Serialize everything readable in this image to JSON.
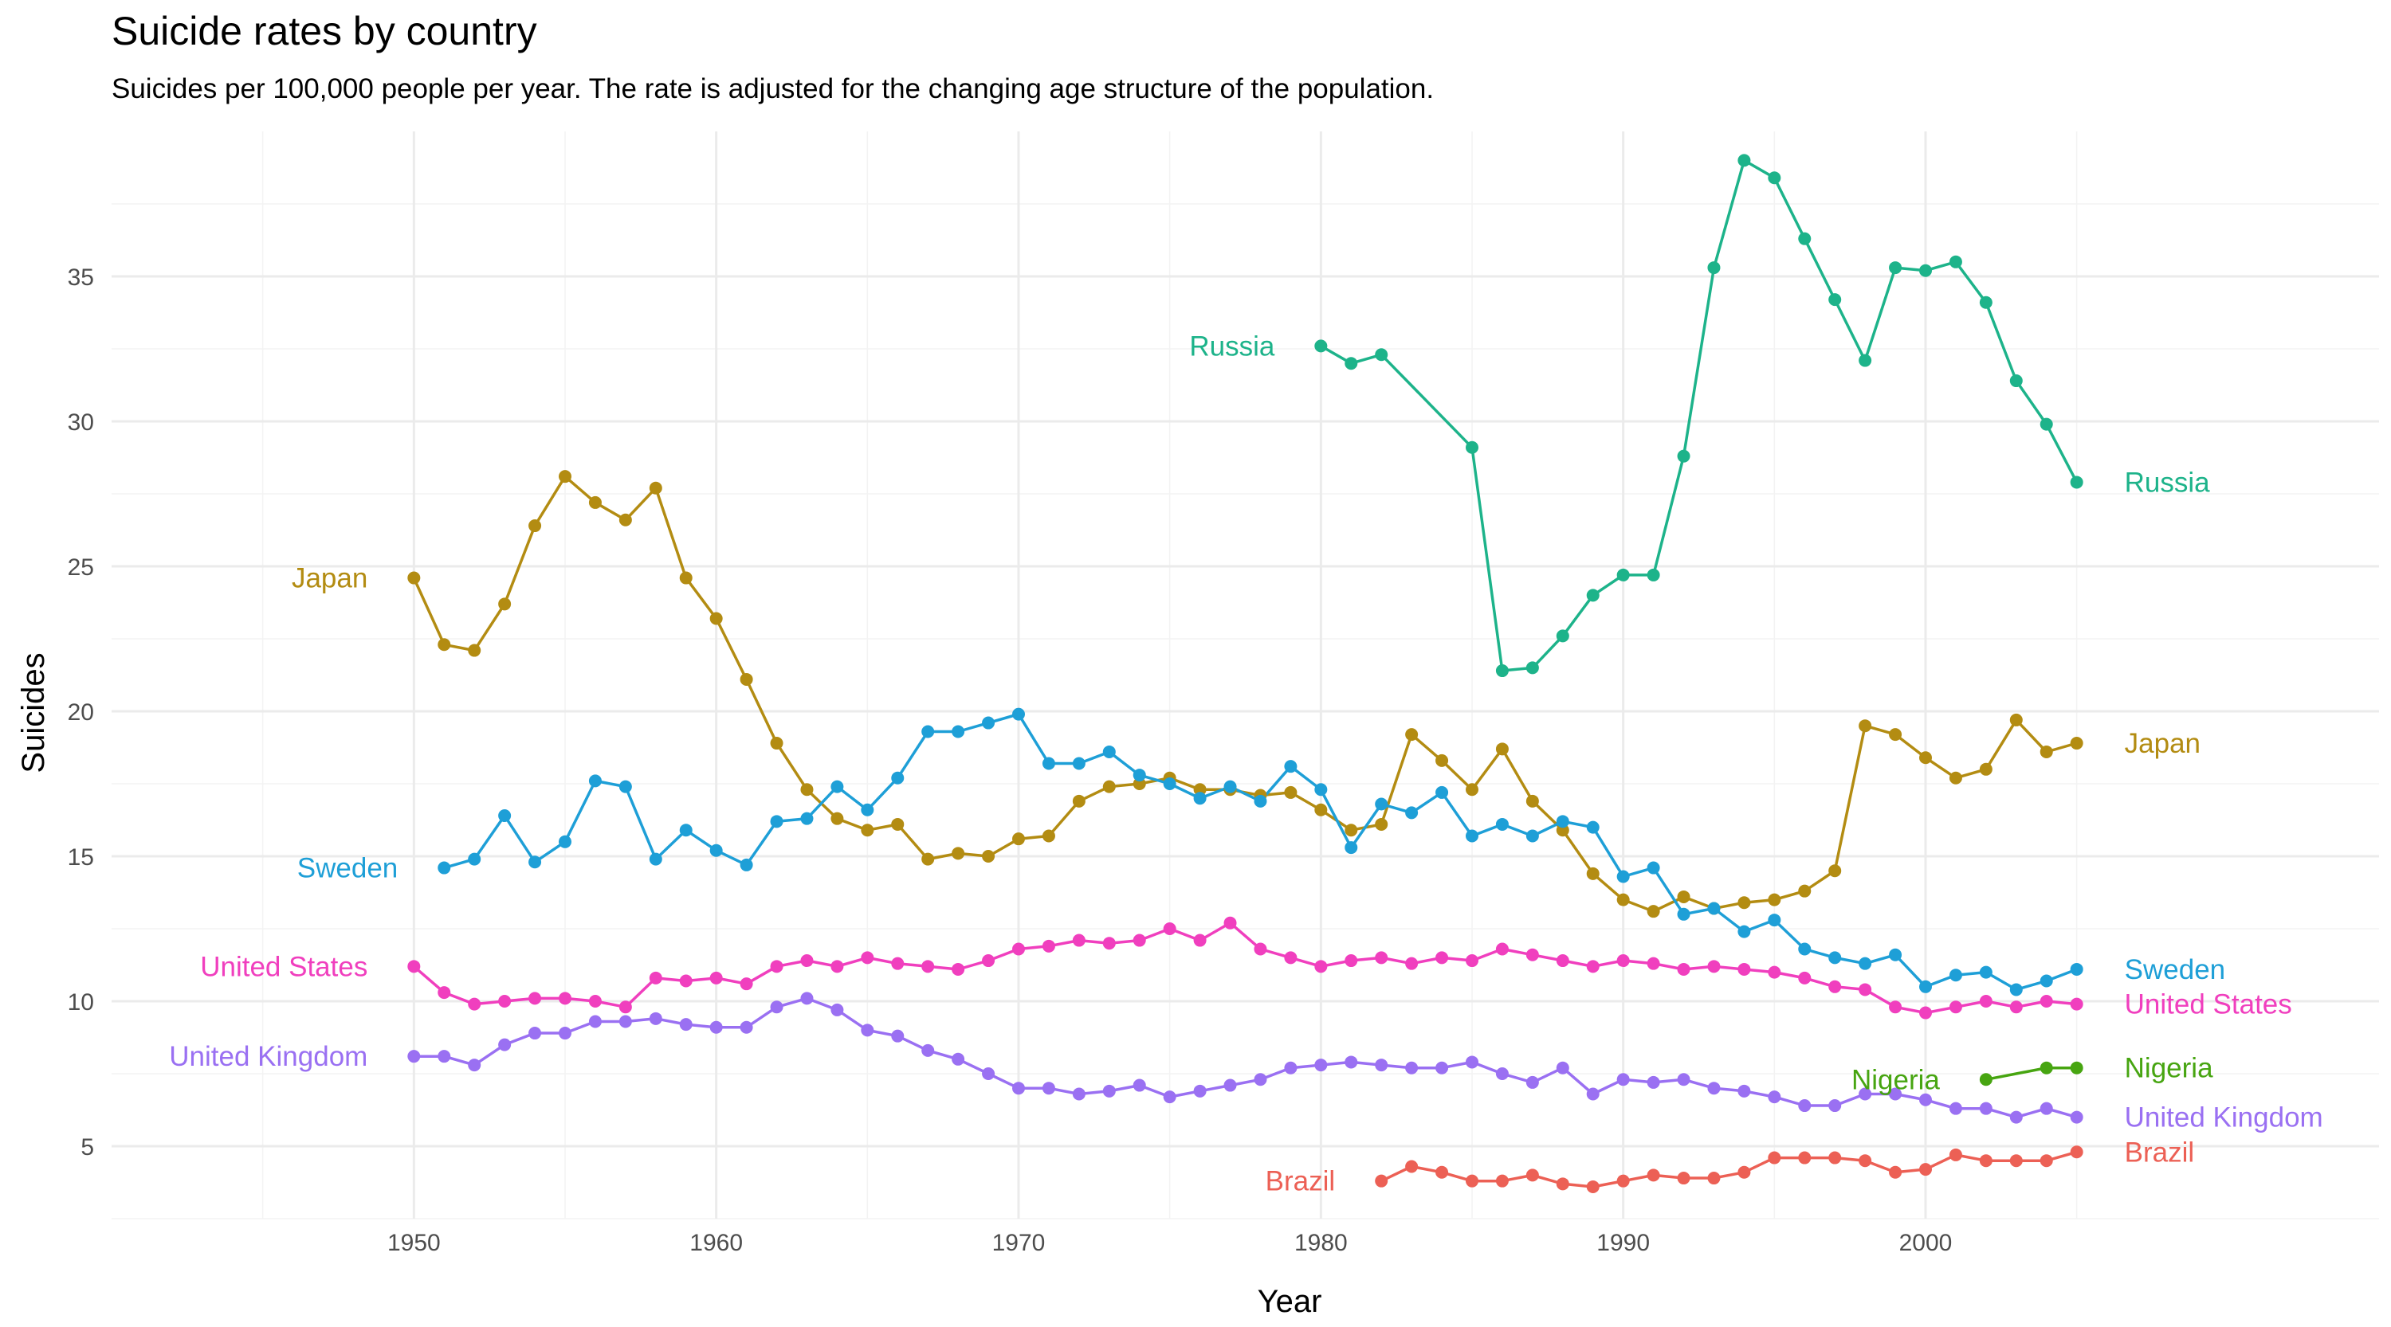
{
  "chart_data": {
    "type": "line",
    "title": "Suicide rates by country",
    "subtitle": "Suicides per 100,000 people per year. The rate is adjusted for the changing age structure of the population.",
    "xlabel": "Year",
    "ylabel": "Suicides",
    "xlim": [
      1940,
      2015
    ],
    "ylim": [
      2.5,
      40
    ],
    "x_ticks": [
      1950,
      1960,
      1970,
      1980,
      1990,
      2000
    ],
    "y_ticks": [
      5,
      10,
      15,
      20,
      25,
      30,
      35
    ],
    "grid": true,
    "legend": "none (series labelled directly at start and end of each line)",
    "series": [
      {
        "name": "Russia",
        "color": "#1db38a",
        "x": [
          1980,
          1981,
          1982,
          1985,
          1986,
          1987,
          1988,
          1989,
          1990,
          1991,
          1992,
          1993,
          1994,
          1995,
          1996,
          1997,
          1998,
          1999,
          2000,
          2001,
          2002,
          2003,
          2004,
          2005
        ],
        "y": [
          32.6,
          32.0,
          32.3,
          29.1,
          21.4,
          21.5,
          22.6,
          24.0,
          24.7,
          24.7,
          28.8,
          35.3,
          39.0,
          38.4,
          36.3,
          34.2,
          32.1,
          35.3,
          35.2,
          35.5,
          34.1,
          31.4,
          29.9,
          27.9
        ]
      },
      {
        "name": "Japan",
        "color": "#b38c12",
        "x": [
          1950,
          1951,
          1952,
          1953,
          1954,
          1955,
          1956,
          1957,
          1958,
          1959,
          1960,
          1961,
          1962,
          1963,
          1964,
          1965,
          1966,
          1967,
          1968,
          1969,
          1970,
          1971,
          1972,
          1973,
          1974,
          1975,
          1976,
          1977,
          1978,
          1979,
          1980,
          1981,
          1982,
          1983,
          1984,
          1985,
          1986,
          1987,
          1988,
          1989,
          1990,
          1991,
          1992,
          1993,
          1994,
          1995,
          1996,
          1997,
          1998,
          1999,
          2000,
          2001,
          2002,
          2003,
          2004,
          2005
        ],
        "y": [
          24.6,
          22.3,
          22.1,
          23.7,
          26.4,
          28.1,
          27.2,
          26.6,
          27.7,
          24.6,
          23.2,
          21.1,
          18.9,
          17.3,
          16.3,
          15.9,
          16.1,
          14.9,
          15.1,
          15.0,
          15.6,
          15.7,
          16.9,
          17.4,
          17.5,
          17.7,
          17.3,
          17.3,
          17.1,
          17.2,
          16.6,
          15.9,
          16.1,
          19.2,
          18.3,
          17.3,
          18.7,
          16.9,
          15.9,
          14.4,
          13.5,
          13.1,
          13.6,
          13.2,
          13.4,
          13.5,
          13.8,
          14.5,
          19.5,
          19.2,
          18.4,
          17.7,
          18.0,
          19.7,
          18.6,
          18.9
        ]
      },
      {
        "name": "Sweden",
        "color": "#1e9fd7",
        "x": [
          1951,
          1952,
          1953,
          1954,
          1955,
          1956,
          1957,
          1958,
          1959,
          1960,
          1961,
          1962,
          1963,
          1964,
          1965,
          1966,
          1967,
          1968,
          1969,
          1970,
          1971,
          1972,
          1973,
          1974,
          1975,
          1976,
          1977,
          1978,
          1979,
          1980,
          1981,
          1982,
          1983,
          1984,
          1985,
          1986,
          1987,
          1988,
          1989,
          1990,
          1991,
          1992,
          1993,
          1994,
          1995,
          1996,
          1997,
          1998,
          1999,
          2000,
          2001,
          2002,
          2003,
          2004,
          2005
        ],
        "y": [
          14.6,
          14.9,
          16.4,
          14.8,
          15.5,
          17.6,
          17.4,
          14.9,
          15.9,
          15.2,
          14.7,
          16.2,
          16.3,
          17.4,
          16.6,
          17.7,
          19.3,
          19.3,
          19.6,
          19.9,
          18.2,
          18.2,
          18.6,
          17.8,
          17.5,
          17.0,
          17.4,
          16.9,
          18.1,
          17.3,
          15.3,
          16.8,
          16.5,
          17.2,
          15.7,
          16.1,
          15.7,
          16.2,
          16.0,
          14.3,
          14.6,
          13.0,
          13.2,
          12.4,
          12.8,
          11.8,
          11.5,
          11.3,
          11.6,
          10.5,
          10.9,
          11.0,
          10.4,
          10.7,
          11.1
        ]
      },
      {
        "name": "United States",
        "color": "#f03fbe",
        "x": [
          1950,
          1951,
          1952,
          1953,
          1954,
          1955,
          1956,
          1957,
          1958,
          1959,
          1960,
          1961,
          1962,
          1963,
          1964,
          1965,
          1966,
          1967,
          1968,
          1969,
          1970,
          1971,
          1972,
          1973,
          1974,
          1975,
          1976,
          1977,
          1978,
          1979,
          1980,
          1981,
          1982,
          1983,
          1984,
          1985,
          1986,
          1987,
          1988,
          1989,
          1990,
          1991,
          1992,
          1993,
          1994,
          1995,
          1996,
          1997,
          1998,
          1999,
          2000,
          2001,
          2002,
          2003,
          2004,
          2005
        ],
        "y": [
          11.2,
          10.3,
          9.9,
          10.0,
          10.1,
          10.1,
          10.0,
          9.8,
          10.8,
          10.7,
          10.8,
          10.6,
          11.2,
          11.4,
          11.2,
          11.5,
          11.3,
          11.2,
          11.1,
          11.4,
          11.8,
          11.9,
          12.1,
          12.0,
          12.1,
          12.5,
          12.1,
          12.7,
          11.8,
          11.5,
          11.2,
          11.4,
          11.5,
          11.3,
          11.5,
          11.4,
          11.8,
          11.6,
          11.4,
          11.2,
          11.4,
          11.3,
          11.1,
          11.2,
          11.1,
          11.0,
          10.8,
          10.5,
          10.4,
          9.8,
          9.6,
          9.8,
          10.0,
          9.8,
          10.0,
          9.9
        ]
      },
      {
        "name": "United Kingdom",
        "color": "#9a70f2",
        "x": [
          1950,
          1951,
          1952,
          1953,
          1954,
          1955,
          1956,
          1957,
          1958,
          1959,
          1960,
          1961,
          1962,
          1963,
          1964,
          1965,
          1966,
          1967,
          1968,
          1969,
          1970,
          1971,
          1972,
          1973,
          1974,
          1975,
          1976,
          1977,
          1978,
          1979,
          1980,
          1981,
          1982,
          1983,
          1984,
          1985,
          1986,
          1987,
          1988,
          1989,
          1990,
          1991,
          1992,
          1993,
          1994,
          1995,
          1996,
          1997,
          1998,
          1999,
          2000,
          2001,
          2002,
          2003,
          2004,
          2005
        ],
        "y": [
          8.1,
          8.1,
          7.8,
          8.5,
          8.9,
          8.9,
          9.3,
          9.3,
          9.4,
          9.2,
          9.1,
          9.1,
          9.8,
          10.1,
          9.7,
          9.0,
          8.8,
          8.3,
          8.0,
          7.5,
          7.0,
          7.0,
          6.8,
          6.9,
          7.1,
          6.7,
          6.9,
          7.1,
          7.3,
          7.7,
          7.8,
          7.9,
          7.8,
          7.7,
          7.7,
          7.9,
          7.5,
          7.2,
          7.7,
          6.8,
          7.3,
          7.2,
          7.3,
          7.0,
          6.9,
          6.7,
          6.4,
          6.4,
          6.8,
          6.8,
          6.6,
          6.3,
          6.3,
          6.0,
          6.3,
          6.0
        ]
      },
      {
        "name": "Nigeria",
        "color": "#47a511",
        "x": [
          2002,
          2004,
          2005
        ],
        "y": [
          7.3,
          7.7,
          7.7
        ]
      },
      {
        "name": "Brazil",
        "color": "#ec6055",
        "x": [
          1982,
          1983,
          1984,
          1985,
          1986,
          1987,
          1988,
          1989,
          1990,
          1991,
          1992,
          1993,
          1994,
          1995,
          1996,
          1997,
          1998,
          1999,
          2000,
          2001,
          2002,
          2003,
          2004,
          2005
        ],
        "y": [
          3.8,
          4.3,
          4.1,
          3.8,
          3.8,
          4.0,
          3.7,
          3.6,
          3.8,
          4.0,
          3.9,
          3.9,
          4.1,
          4.6,
          4.6,
          4.6,
          4.5,
          4.1,
          4.2,
          4.7,
          4.5,
          4.5,
          4.5,
          4.8
        ]
      }
    ]
  }
}
